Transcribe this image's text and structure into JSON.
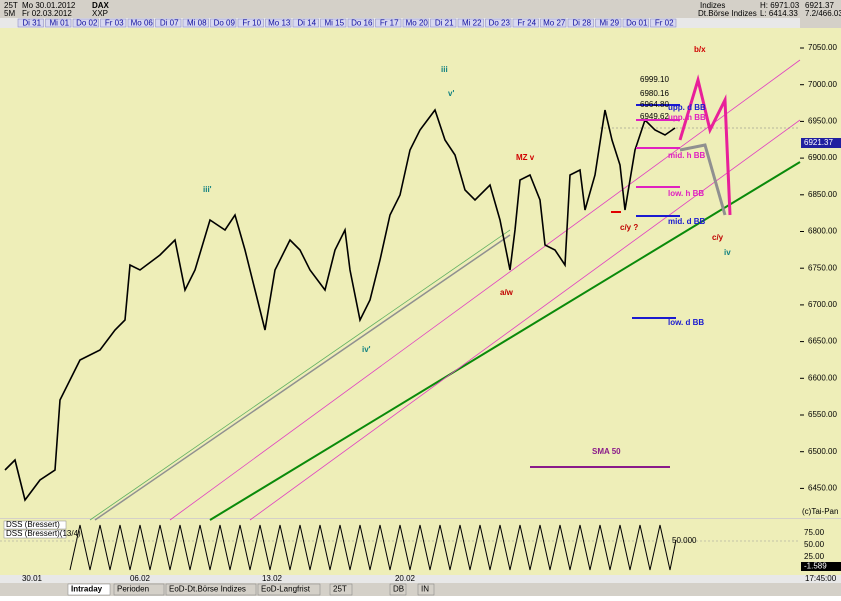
{
  "header": {
    "left_top": [
      "25T",
      "Mo 30.01.2012",
      "DAX"
    ],
    "left_bottom": [
      "5M",
      "Fr 02.03.2012",
      "XXP"
    ],
    "right_top": [
      "Indizes",
      "H: 6971.03",
      "6921.37"
    ],
    "right_bottom": [
      "Dt.Börse Indizes",
      "L: 6414.33",
      "7.2/466.03"
    ]
  },
  "date_tabs": [
    "Di 31",
    "Mi 01",
    "Do 02",
    "Fr 03",
    "Mo 06",
    "Di 07",
    "Mi 08",
    "Do 09",
    "Fr 10",
    "Mo 13",
    "Di 14",
    "Mi 15",
    "Do 16",
    "Fr 17",
    "Mo 20",
    "Di 21",
    "Mi 22",
    "Do 23",
    "Fr 24",
    "Mo 27",
    "Di 28",
    "Mi 29",
    "Do 01",
    "Fr 02"
  ],
  "price_axis": [
    "7050.00",
    "7000.00",
    "6950.00",
    "6900.00",
    "6850.00",
    "6800.00",
    "6750.00",
    "6700.00",
    "6650.00",
    "6600.00",
    "6550.00",
    "6500.00",
    "6450.00"
  ],
  "last_price": "6921.37",
  "annotations": [
    "iii",
    "v'",
    "iii'",
    "iv'",
    "MZ v",
    "a/w",
    "c/y ?",
    "b/x",
    "c/y",
    "iv",
    "6999.10",
    "6980.16",
    "6964.80",
    "6949.62",
    "upp. d BB",
    "upp. h BB",
    "mid. h BB",
    "low. h BB",
    "mid. d BB",
    "low. d BB",
    "SMA 50"
  ],
  "copyright": "(c)Tai-Pan",
  "indicator": {
    "titles": [
      "DSS (Bressert)",
      "DSS (Bressert)(13/4)"
    ],
    "axis": [
      "75.00",
      "50.00",
      "25.00"
    ],
    "current": "-1.589",
    "level": "50.000"
  },
  "time_axis": [
    "30.01",
    "06.02",
    "13.02",
    "20.02"
  ],
  "time_right": "17:45:00",
  "tabs": [
    "Intraday",
    "Perioden",
    "EoD-Dt.Börse Indizes",
    "EoD-Langfrist",
    "25T",
    "DB",
    "IN"
  ]
}
